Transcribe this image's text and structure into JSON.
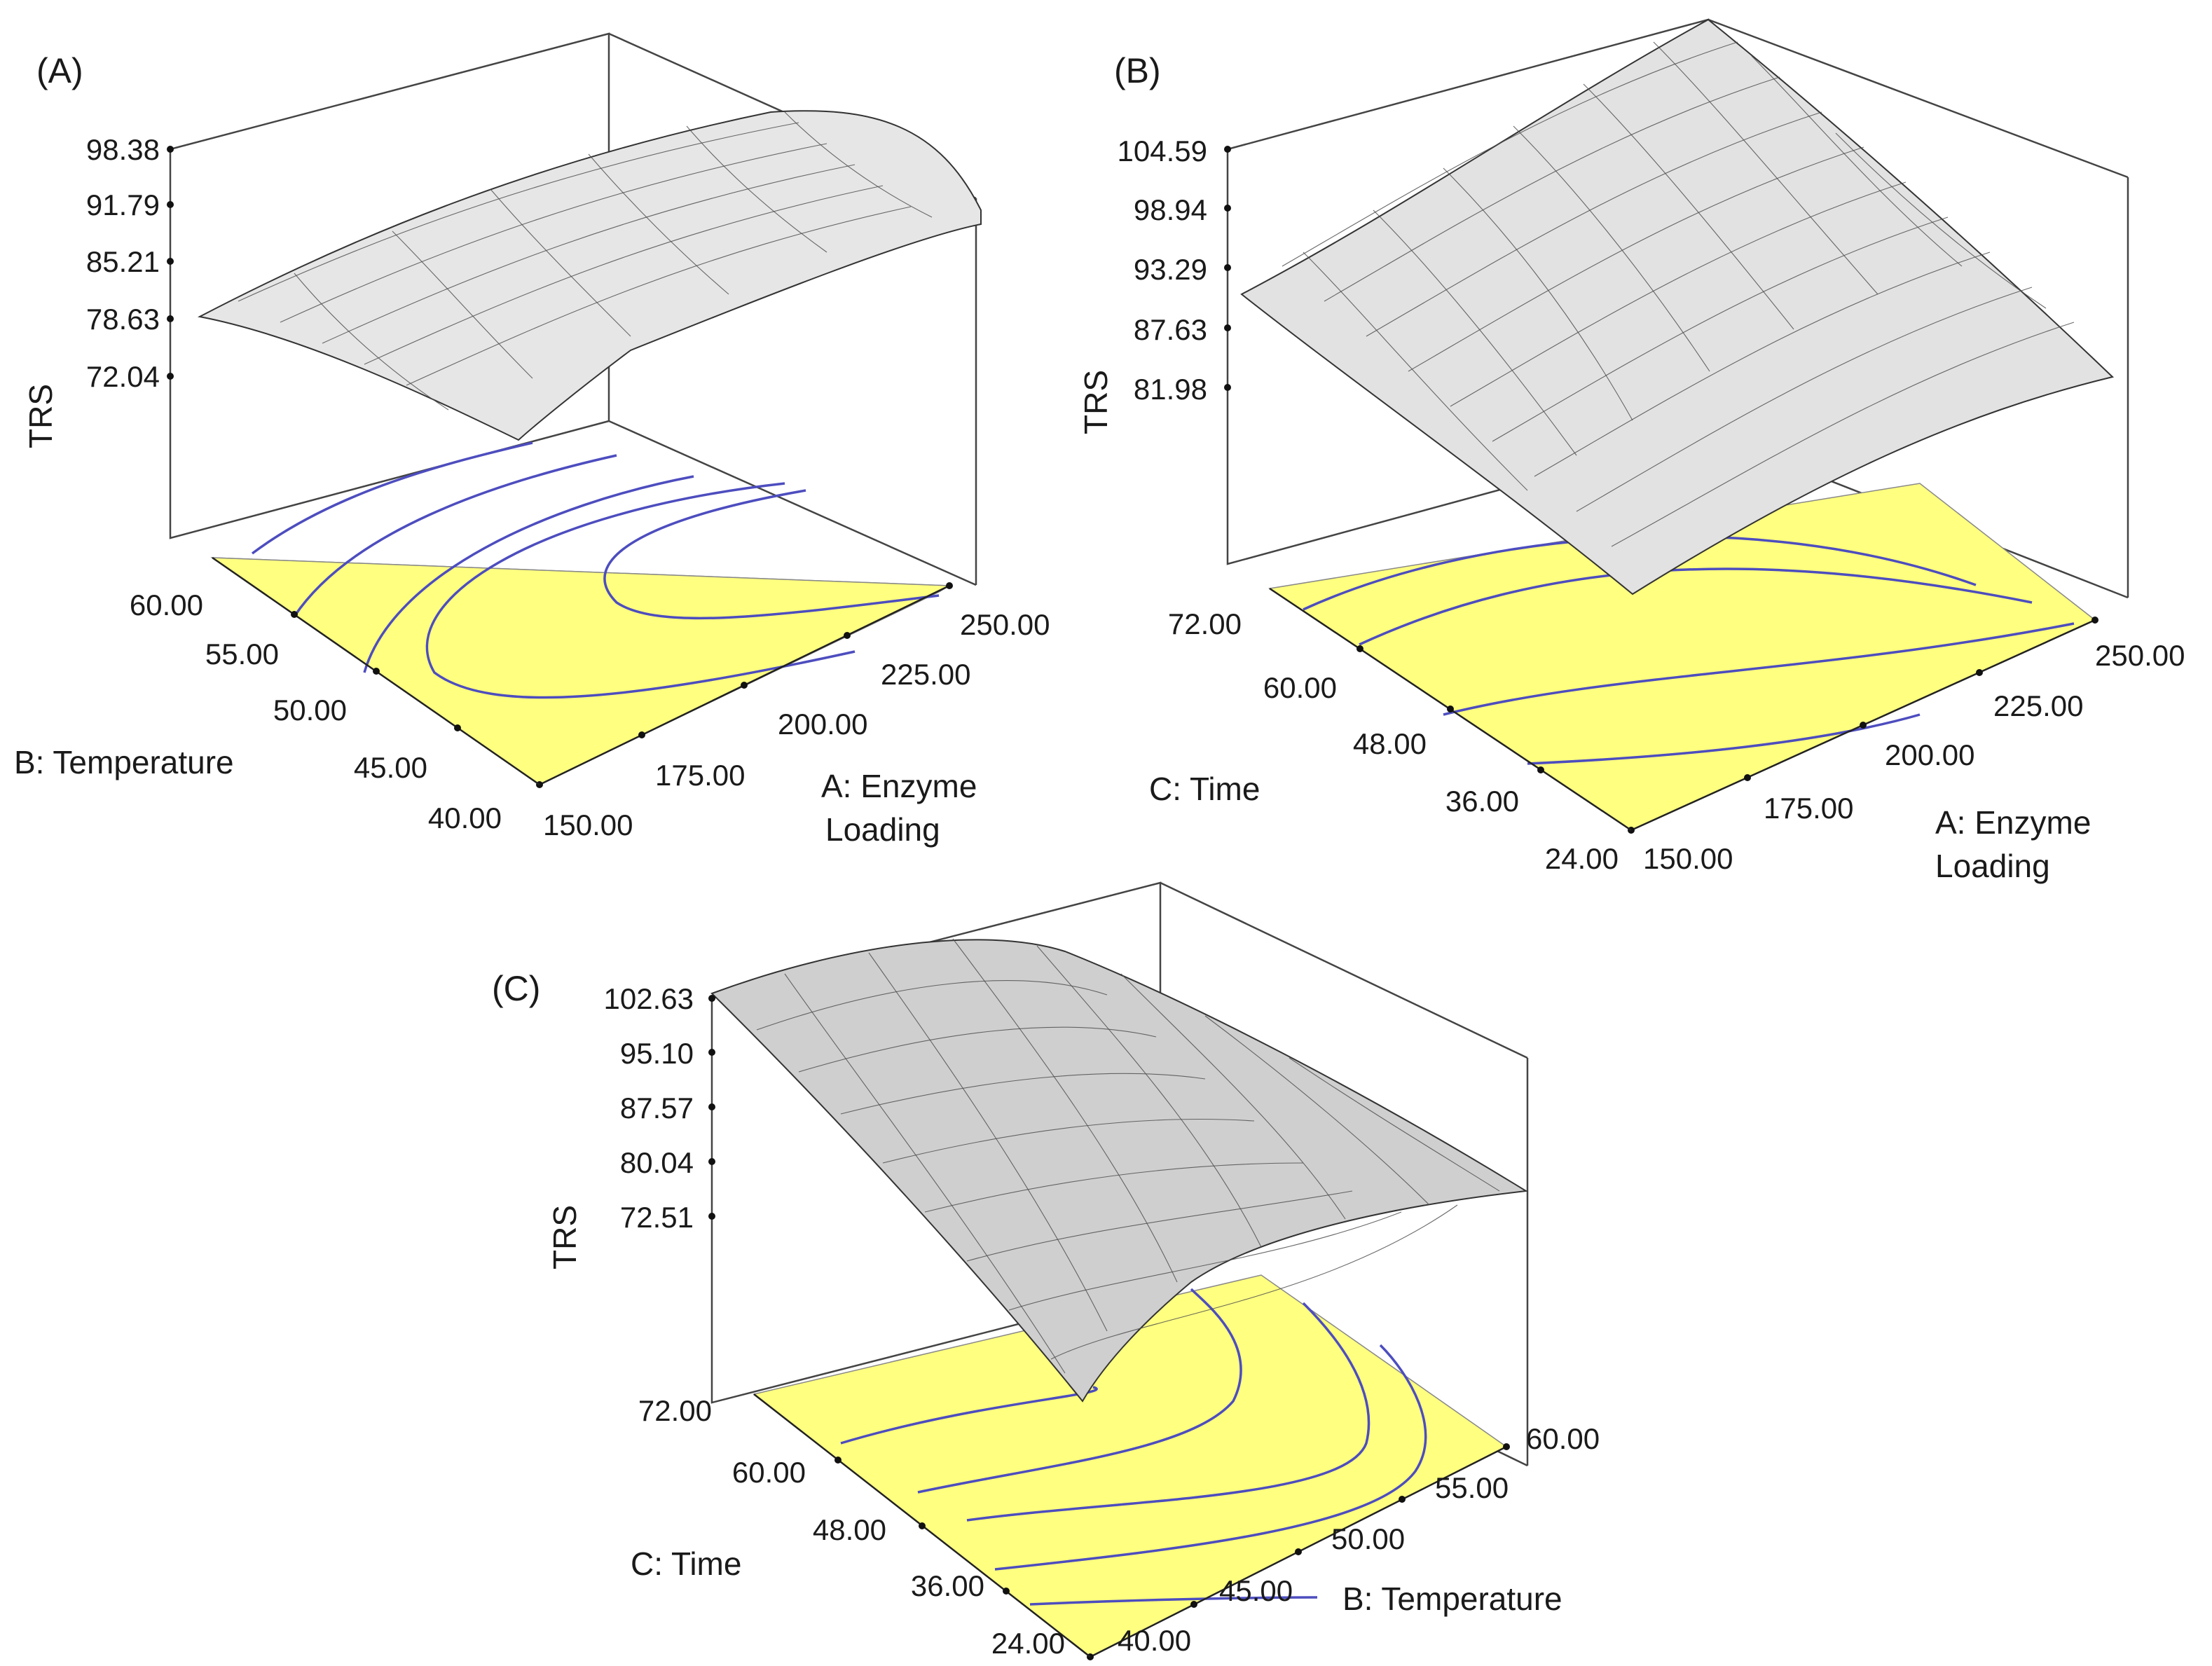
{
  "chart_data": [
    {
      "type": "surface3d",
      "panel_label": "(A)",
      "zlabel": "TRS",
      "z_ticks": [
        "98.38",
        "91.79",
        "85.21",
        "78.63",
        "72.04"
      ],
      "x_axis": {
        "label_lines": [
          "A: Enzyme",
          "Loading"
        ],
        "ticks": [
          "150.00",
          "175.00",
          "200.00",
          "225.00",
          "250.00"
        ],
        "range": [
          150,
          250
        ]
      },
      "y_axis": {
        "label_lines": [
          "B: Temperature"
        ],
        "ticks": [
          "40.00",
          "45.00",
          "50.00",
          "55.00",
          "60.00"
        ],
        "range": [
          40,
          60
        ]
      },
      "floor_color": "#ffff80",
      "contour_color": "#4d4dbf",
      "surface_color": "#d8d8d8"
    },
    {
      "type": "surface3d",
      "panel_label": "(B)",
      "zlabel": "TRS",
      "z_ticks": [
        "104.59",
        "98.94",
        "93.29",
        "87.63",
        "81.98"
      ],
      "x_axis": {
        "label_lines": [
          "A: Enzyme",
          "Loading"
        ],
        "ticks": [
          "150.00",
          "175.00",
          "200.00",
          "225.00",
          "250.00"
        ],
        "range": [
          150,
          250
        ]
      },
      "y_axis": {
        "label_lines": [
          "C: Time"
        ],
        "ticks": [
          "24.00",
          "36.00",
          "48.00",
          "60.00",
          "72.00"
        ],
        "range": [
          24,
          72
        ]
      },
      "floor_color": "#ffff80",
      "contour_color": "#4d4dbf",
      "surface_color": "#d8d8d8"
    },
    {
      "type": "surface3d",
      "panel_label": "(C)",
      "zlabel": "TRS",
      "z_ticks": [
        "102.63",
        "95.10",
        "87.57",
        "80.04",
        "72.51"
      ],
      "x_axis": {
        "label_lines": [
          "B: Temperature"
        ],
        "ticks": [
          "40.00",
          "45.00",
          "50.00",
          "55.00",
          "60.00"
        ],
        "range": [
          40,
          60
        ]
      },
      "y_axis": {
        "label_lines": [
          "C: Time"
        ],
        "ticks": [
          "24.00",
          "36.00",
          "48.00",
          "60.00",
          "72.00"
        ],
        "range": [
          24,
          72
        ]
      },
      "floor_color": "#ffff80",
      "contour_color": "#4d4dbf",
      "surface_color": "#d8d8d8"
    }
  ]
}
